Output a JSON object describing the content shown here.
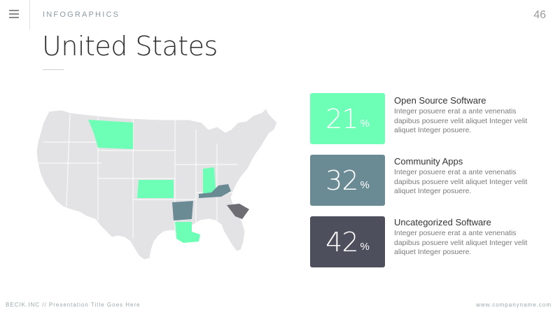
{
  "header": {
    "section_label": "INFOGRAPHICS",
    "page_number": "46"
  },
  "title": "United States",
  "map": {
    "base_color": "#e3e3e5",
    "highlighted_states": [
      {
        "state": "Montana",
        "color": "#6effb7"
      },
      {
        "state": "Kansas",
        "color": "#6effb7"
      },
      {
        "state": "Indiana",
        "color": "#6effb7"
      },
      {
        "state": "Louisiana",
        "color": "#6effb7"
      },
      {
        "state": "Arkansas",
        "color": "#6a8a94"
      },
      {
        "state": "Kentucky",
        "color": "#6a8a94"
      },
      {
        "state": "South Carolina",
        "color": "#6d6d73"
      }
    ]
  },
  "stats": [
    {
      "value": "21",
      "unit": "%",
      "color": "#6effb7",
      "title": "Open Source Software",
      "description": "Integer posuere erat a ante venenatis dapibus posuere velit aliquet Integer velit aliquet Integer posuere."
    },
    {
      "value": "32",
      "unit": "%",
      "color": "#6a8a94",
      "title": "Community Apps",
      "description": "Integer posuere erat a ante venenatis dapibus posuere velit aliquet Integer velit aliquet Integer posuere."
    },
    {
      "value": "42",
      "unit": "%",
      "color": "#4d4f5c",
      "title": "Uncategorized Software",
      "description": "Integer posuere erat a ante venenatis dapibus posuere velit aliquet Integer velit aliquet Integer posuere."
    }
  ],
  "footer": {
    "left": "BECIK.INC // Presentation Title Goes Here",
    "right": "www.companyname.com"
  }
}
